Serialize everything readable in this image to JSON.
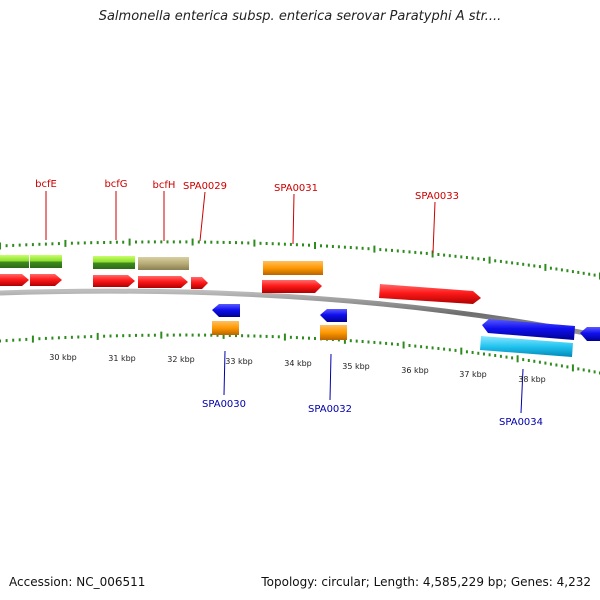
{
  "title": "Salmonella enterica subsp. enterica serovar Paratyphi A str....",
  "footer": {
    "accession": "Accession: NC_006511",
    "summary": "Topology: circular; Length: 4,585,229 bp; Genes: 4,232"
  },
  "colors": {
    "backbone": "#8a8a8a",
    "tick": "#2e8b1e",
    "label_top": "#cc0000",
    "label_bottom": "#0000aa"
  },
  "scale_labels": [
    "30 kbp",
    "31 kbp",
    "32 kbp",
    "33 kbp",
    "34 kbp",
    "35 kbp",
    "36 kbp",
    "37 kbp",
    "38 kbp"
  ],
  "top_labels": [
    "bcfE",
    "bcfG",
    "bcfH",
    "SPA0029",
    "SPA0031",
    "SPA0033"
  ],
  "bottom_labels": [
    "SPA0030",
    "SPA0032",
    "SPA0034"
  ]
}
